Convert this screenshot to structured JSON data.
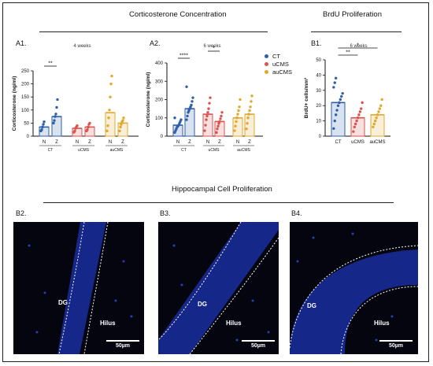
{
  "titles": {
    "corticosterone": "Corticosterone Concentration",
    "brdu": "BrdU Proliferation",
    "hippocampal": "Hippocampal Cell Proliferation"
  },
  "panels": {
    "a1": "A1.",
    "a2": "A2.",
    "b1": "B1.",
    "b2": "B2.",
    "b3": "B3.",
    "b4": "B4."
  },
  "legend": [
    {
      "label": "CT",
      "color": "#2f5fa8"
    },
    {
      "label": "uCMS",
      "color": "#d9534f"
    },
    {
      "label": "auCMS",
      "color": "#e0a92b"
    }
  ],
  "micrographs": {
    "dg": "DG",
    "hilus": "Hilus",
    "scale": "50µm"
  },
  "chart_data": [
    {
      "type": "bar",
      "panel": "A1.",
      "subtitle": "4 weeks",
      "ylabel": "Corticosterone (ng/ml)",
      "ylim": [
        0,
        250
      ],
      "yticks": [
        0,
        50,
        100,
        150,
        200,
        250
      ],
      "categories": [
        "N",
        "Z",
        "N",
        "Z",
        "N",
        "Z"
      ],
      "groups": [
        "CT",
        "uCMS",
        "auCMS"
      ],
      "colors": [
        "#2f5fa8",
        "#2f5fa8",
        "#d9534f",
        "#d9534f",
        "#e0a92b",
        "#e0a92b"
      ],
      "values": [
        35,
        75,
        30,
        35,
        90,
        50
      ],
      "points": [
        [
          20,
          25,
          35,
          45,
          55
        ],
        [
          50,
          60,
          75,
          85,
          110,
          140
        ],
        [
          15,
          20,
          30,
          35,
          40
        ],
        [
          20,
          25,
          35,
          45,
          50
        ],
        [
          20,
          40,
          70,
          100,
          150,
          200,
          230
        ],
        [
          20,
          35,
          45,
          55,
          60,
          70
        ]
      ],
      "significance": [
        {
          "from": 0,
          "to": 1,
          "label": "**"
        }
      ]
    },
    {
      "type": "bar",
      "panel": "A2.",
      "subtitle": "6 weeks",
      "ylabel": "Corticosterone (ng/ml)",
      "ylim": [
        0,
        400
      ],
      "yticks": [
        0,
        100,
        200,
        300,
        400
      ],
      "categories": [
        "N",
        "Z",
        "N",
        "Z",
        "N",
        "Z"
      ],
      "groups": [
        "CT",
        "uCMS",
        "auCMS"
      ],
      "colors": [
        "#2f5fa8",
        "#2f5fa8",
        "#d9534f",
        "#d9534f",
        "#e0a92b",
        "#e0a92b"
      ],
      "values": [
        60,
        150,
        120,
        80,
        100,
        120
      ],
      "points": [
        [
          20,
          30,
          40,
          50,
          55,
          60,
          70,
          80,
          90,
          100
        ],
        [
          90,
          110,
          130,
          140,
          150,
          160,
          170,
          190,
          210,
          270
        ],
        [
          30,
          60,
          90,
          110,
          130,
          150,
          180,
          210
        ],
        [
          20,
          40,
          55,
          70,
          80,
          95,
          110,
          130
        ],
        [
          30,
          55,
          80,
          100,
          120,
          140,
          160,
          200
        ],
        [
          40,
          70,
          100,
          120,
          140,
          160,
          190,
          220
        ]
      ],
      "significance": [
        {
          "from": 0,
          "to": 1,
          "label": "****"
        },
        {
          "from": 2,
          "to": 3,
          "label": "*"
        }
      ]
    },
    {
      "type": "bar",
      "panel": "B1.",
      "subtitle": "6 weeks",
      "ylabel": "BrdU+ cells/mm³",
      "ylim": [
        0,
        50
      ],
      "yticks": [
        0,
        10,
        20,
        30,
        40,
        50
      ],
      "categories": [
        "CT",
        "uCMS",
        "auCMS"
      ],
      "colors": [
        "#2f5fa8",
        "#d9534f",
        "#e0a92b"
      ],
      "values": [
        22,
        12,
        14
      ],
      "points": [
        [
          5,
          10,
          14,
          17,
          20,
          22,
          24,
          26,
          28,
          32,
          35,
          38
        ],
        [
          3,
          6,
          8,
          10,
          12,
          14,
          16,
          18,
          22
        ],
        [
          6,
          8,
          10,
          12,
          14,
          16,
          18,
          20,
          24
        ]
      ],
      "significance": [
        {
          "from": 0,
          "to": 1,
          "label": "**"
        },
        {
          "from": 0,
          "to": 2,
          "label": "*"
        }
      ]
    }
  ]
}
